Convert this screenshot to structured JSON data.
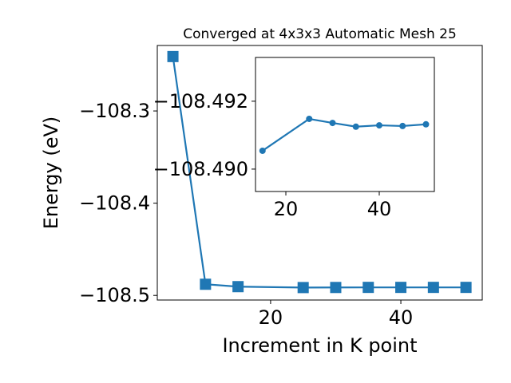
{
  "chart_data": [
    {
      "type": "line",
      "title": "Converged at 4x3x3 Automatic Mesh 25",
      "xlabel": "Increment in K point",
      "ylabel": "Energy (eV)",
      "x": [
        5,
        10,
        15,
        25,
        30,
        35,
        40,
        45,
        50
      ],
      "series": [
        {
          "color": "#1f77b4",
          "marker": "square",
          "values": [
            -108.241,
            -108.4879,
            -108.4905,
            -108.4915,
            -108.4914,
            -108.4913,
            -108.4913,
            -108.4913,
            -108.4913
          ]
        }
      ],
      "xlim": [
        2.6,
        52.5
      ],
      "xticks": [
        20,
        40
      ],
      "ylim": [
        -108.505,
        -108.229
      ],
      "yticks": [
        {
          "value": -108.3,
          "label": "−108.3"
        },
        {
          "value": -108.4,
          "label": "−108.4"
        },
        {
          "value": -108.5,
          "label": "−108.5"
        }
      ]
    },
    {
      "type": "line",
      "x": [
        15,
        25,
        30,
        35,
        40,
        45,
        50
      ],
      "series": [
        {
          "color": "#1f77b4",
          "marker": "circle",
          "values": [
            -108.49054,
            -108.49148,
            -108.49136,
            -108.49125,
            -108.49129,
            -108.49127,
            -108.49132
          ]
        }
      ],
      "xlim": [
        13.5,
        51.8
      ],
      "xticks": [
        20,
        40
      ],
      "ylim": [
        -108.48934,
        -108.49329
      ],
      "yticks": [
        {
          "value": -108.492,
          "label": "−108.492"
        },
        {
          "value": -108.49,
          "label": "−108.490"
        }
      ]
    }
  ]
}
